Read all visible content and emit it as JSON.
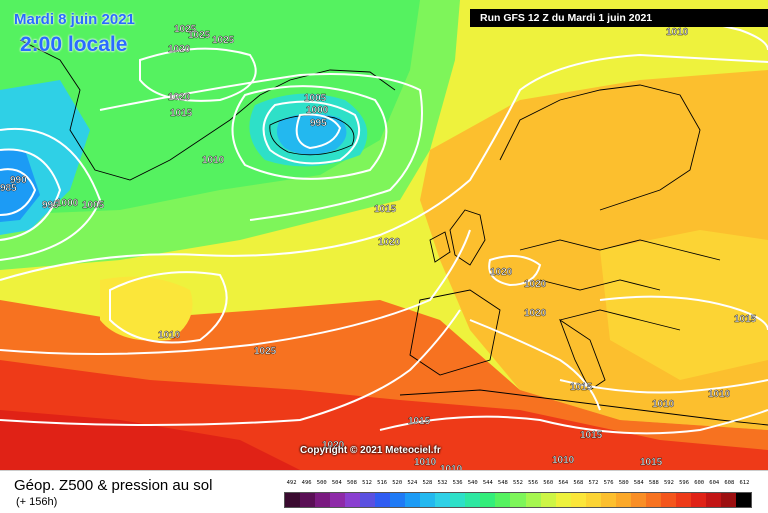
{
  "header": {
    "date": "Mardi 8 juin 2021",
    "time": "2:00 locale",
    "run": "Run GFS 12 Z du Mardi 1 juin 2021"
  },
  "copyright": "Copyright © 2021 Meteociel.fr",
  "footer": {
    "title": "Géop. Z500 & pression au sol",
    "subtitle": "(+ 156h)"
  },
  "legend_scale": {
    "labels": [
      "492",
      "496",
      "500",
      "504",
      "508",
      "512",
      "516",
      "520",
      "524",
      "528",
      "532",
      "536",
      "540",
      "544",
      "548",
      "552",
      "556",
      "560",
      "564",
      "568",
      "572",
      "576",
      "580",
      "584",
      "588",
      "592",
      "596",
      "600",
      "604",
      "608",
      "612"
    ],
    "colors": [
      "#3a0a2f",
      "#5a0f55",
      "#7a1a80",
      "#8e2aa8",
      "#8a3fd0",
      "#5a50e0",
      "#2f5cf2",
      "#1f7af5",
      "#1c9bf5",
      "#23b8ef",
      "#2fd0e6",
      "#2ee0c8",
      "#2ee8a2",
      "#33ee7a",
      "#55f260",
      "#7ef55a",
      "#a6f650",
      "#cdf545",
      "#eef23d",
      "#fbe63a",
      "#fcd434",
      "#fcbf2e",
      "#fba829",
      "#f98e25",
      "#f77220",
      "#f4561c",
      "#ee3a18",
      "#e02216",
      "#c21414",
      "#9c0f10",
      "#000000"
    ]
  },
  "isobar_labels": [
    {
      "text": "1025"
    },
    {
      "text": "1020"
    },
    {
      "text": "1025"
    },
    {
      "text": "1025"
    },
    {
      "text": "1020"
    },
    {
      "text": "1015"
    },
    {
      "text": "1005"
    },
    {
      "text": "1000"
    },
    {
      "text": "995"
    },
    {
      "text": "1010"
    },
    {
      "text": "985"
    },
    {
      "text": "990"
    },
    {
      "text": "995"
    },
    {
      "text": "1000"
    },
    {
      "text": "1005"
    },
    {
      "text": "1015"
    },
    {
      "text": "1020"
    },
    {
      "text": "1020"
    },
    {
      "text": "1020"
    },
    {
      "text": "1020"
    },
    {
      "text": "1010"
    },
    {
      "text": "1025"
    },
    {
      "text": "1015"
    },
    {
      "text": "1015"
    },
    {
      "text": "1010"
    },
    {
      "text": "1010"
    },
    {
      "text": "1015"
    },
    {
      "text": "1015"
    },
    {
      "text": "1010"
    },
    {
      "text": "1010"
    },
    {
      "text": "1015"
    },
    {
      "text": "1010"
    },
    {
      "text": "1020"
    },
    {
      "text": "1010"
    }
  ]
}
